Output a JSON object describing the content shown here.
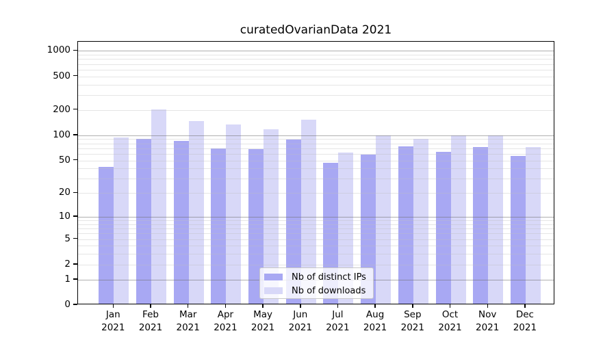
{
  "chart_data": {
    "type": "bar",
    "title": "curatedOvarianData 2021",
    "categories": [
      "Jan",
      "Feb",
      "Mar",
      "Apr",
      "May",
      "Jun",
      "Jul",
      "Aug",
      "Sep",
      "Oct",
      "Nov",
      "Dec"
    ],
    "category_year": "2021",
    "series": [
      {
        "name": "Nb of distinct IPs",
        "color": "#a8a8f3",
        "values": [
          40,
          88,
          82,
          67,
          66,
          85,
          45,
          57,
          71,
          61,
          69,
          54
        ]
      },
      {
        "name": "Nb of downloads",
        "color": "#d8d8f8",
        "values": [
          90,
          197,
          142,
          129,
          114,
          147,
          60,
          95,
          87,
          95,
          95,
          69
        ]
      }
    ],
    "yscale": "log1p",
    "ylim": [
      0,
      1070
    ],
    "yticks": [
      0,
      1,
      2,
      5,
      10,
      20,
      50,
      100,
      200,
      500,
      1000
    ],
    "major_gridlines": [
      1,
      10,
      100,
      1000
    ],
    "minor_gridlines": [
      2,
      3,
      4,
      5,
      6,
      7,
      8,
      9,
      20,
      30,
      40,
      50,
      60,
      70,
      80,
      90,
      200,
      300,
      400,
      500,
      600,
      700,
      800,
      900
    ],
    "grid": "on",
    "legend_position": "bottom-center"
  },
  "colors": {
    "major_grid": "rgba(110,110,110,0.55)",
    "minor_grid": "rgba(190,190,190,0.40)",
    "axis": "#000000",
    "background": "#ffffff"
  }
}
